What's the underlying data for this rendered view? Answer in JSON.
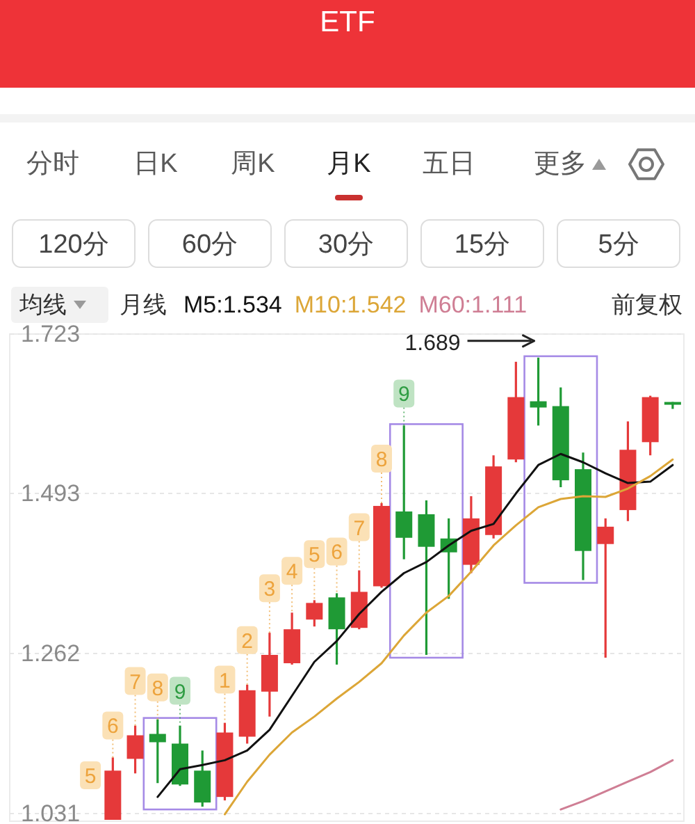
{
  "chart_data": {
    "type": "candlestick",
    "title": "ETF",
    "categories": [
      null,
      null,
      null,
      null,
      null,
      null,
      null,
      null,
      null,
      null,
      null,
      null,
      null,
      null,
      null,
      null,
      null,
      null,
      null,
      null,
      null,
      null,
      null,
      null,
      null,
      null,
      null
    ],
    "ylim": [
      1.02,
      1.723
    ],
    "yticks": [
      1.031,
      1.262,
      1.493,
      1.723
    ],
    "grid": "y",
    "legend": "top",
    "ohlc": [
      null,
      [
        1.022,
        1.112,
        1.022,
        1.093
      ],
      [
        1.11,
        1.158,
        1.089,
        1.144
      ],
      [
        1.146,
        1.167,
        1.075,
        1.134
      ],
      [
        1.132,
        1.158,
        1.071,
        1.073
      ],
      [
        1.093,
        1.122,
        1.041,
        1.047
      ],
      [
        1.055,
        1.162,
        1.05,
        1.148
      ],
      [
        1.142,
        1.217,
        1.132,
        1.209
      ],
      [
        1.207,
        1.292,
        1.171,
        1.26
      ],
      [
        1.248,
        1.321,
        1.246,
        1.297
      ],
      [
        1.311,
        1.339,
        1.301,
        1.335
      ],
      [
        1.343,
        1.349,
        1.246,
        1.297
      ],
      [
        1.299,
        1.382,
        1.297,
        1.351
      ],
      [
        1.359,
        1.479,
        1.357,
        1.475
      ],
      [
        1.467,
        1.591,
        1.398,
        1.429
      ],
      [
        1.463,
        1.483,
        1.26,
        1.416
      ],
      [
        1.428,
        1.457,
        1.341,
        1.408
      ],
      [
        1.39,
        1.489,
        1.378,
        1.457
      ],
      [
        1.433,
        1.548,
        1.428,
        1.532
      ],
      [
        1.542,
        1.683,
        1.538,
        1.632
      ],
      [
        1.626,
        1.689,
        1.591,
        1.617
      ],
      [
        1.619,
        1.646,
        1.502,
        1.512
      ],
      [
        1.528,
        1.552,
        1.368,
        1.41
      ],
      [
        1.42,
        1.457,
        1.256,
        1.445
      ],
      [
        1.469,
        1.597,
        1.453,
        1.556
      ],
      [
        1.567,
        1.634,
        1.548,
        1.632
      ],
      [
        1.625,
        1.625,
        1.615,
        1.621
      ]
    ],
    "colors": [
      null,
      "#e5393a",
      "#e5393a",
      "#1f9a35",
      "#1f9a35",
      "#1f9a35",
      "#e5393a",
      "#e5393a",
      "#e5393a",
      "#e5393a",
      "#e5393a",
      "#1f9a35",
      "#e5393a",
      "#e5393a",
      "#1f9a35",
      "#1f9a35",
      "#1f9a35",
      "#e5393a",
      "#e5393a",
      "#e5393a",
      "#1f9a35",
      "#1f9a35",
      "#1f9a35",
      "#e5393a",
      "#e5393a",
      "#e5393a",
      "#1f9a35"
    ],
    "series": [
      {
        "type": "line",
        "name": "M5:1.534",
        "color": "#111111",
        "values": [
          null,
          null,
          null,
          1.055,
          1.095,
          1.101,
          1.108,
          1.122,
          1.152,
          1.201,
          1.25,
          1.28,
          1.319,
          1.351,
          1.378,
          1.394,
          1.418,
          1.439,
          1.449,
          1.493,
          1.534,
          1.55,
          1.538,
          1.522,
          1.508,
          1.51,
          1.534
        ]
      },
      {
        "type": "line",
        "name": "M10:1.542",
        "color": "#dca637",
        "values": [
          null,
          null,
          null,
          null,
          null,
          null,
          1.03,
          1.077,
          1.116,
          1.148,
          1.171,
          1.197,
          1.221,
          1.248,
          1.288,
          1.321,
          1.345,
          1.38,
          1.418,
          1.447,
          1.473,
          1.485,
          1.489,
          1.488,
          1.5,
          1.518,
          1.542
        ]
      },
      {
        "type": "line",
        "name": "M60:1.111",
        "color": "#cf7e94",
        "values": [
          null,
          null,
          null,
          null,
          null,
          null,
          null,
          null,
          null,
          null,
          null,
          null,
          null,
          null,
          null,
          null,
          null,
          null,
          null,
          null,
          null,
          1.037,
          1.049,
          1.063,
          1.077,
          1.091,
          1.108
        ]
      }
    ],
    "annotations": [
      "分时",
      "日K",
      "周K",
      "月K",
      "五日",
      "更多",
      "120分",
      "60分",
      "30分",
      "15分",
      "5分",
      "均线",
      "月线",
      "前复权",
      "1.689",
      "5",
      "6",
      "7",
      "8",
      "9",
      "1",
      "2",
      "3",
      "4",
      "5",
      "6",
      "7",
      "8",
      "9"
    ]
  }
}
